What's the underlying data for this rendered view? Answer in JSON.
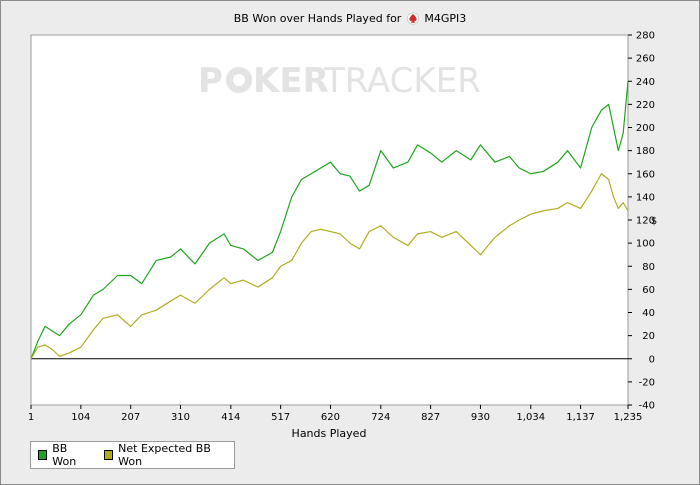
{
  "title": {
    "text_before": "BB Won over Hands Played for",
    "player": "M4GPI3",
    "suit_icon": "red-spade-icon"
  },
  "watermark": {
    "part1": "P",
    "part2": "KER",
    "part3": "TRACKER"
  },
  "colors": {
    "bb_won": "#1ea51e",
    "net_expected": "#b0ad22",
    "plot_bg": "#ffffff",
    "watermark": "#e3e3e3",
    "zero_line": "#000000"
  },
  "chart_data": {
    "type": "line",
    "title": "BB Won over Hands Played for M4GPI3",
    "xlabel": "Hands Played",
    "ylabel": "",
    "xlim": [
      1,
      1235
    ],
    "ylim": [
      -40,
      280
    ],
    "x_ticks": [
      1,
      104,
      207,
      310,
      414,
      517,
      620,
      724,
      827,
      930,
      1034,
      1137,
      1235
    ],
    "x_tick_labels": [
      "1",
      "104",
      "207",
      "310",
      "414",
      "517",
      "620",
      "724",
      "827",
      "930",
      "1,034",
      "1,137",
      "1,235"
    ],
    "y_ticks": [
      -40,
      -20,
      0,
      20,
      40,
      60,
      80,
      100,
      120,
      140,
      160,
      180,
      200,
      220,
      240,
      260,
      280
    ],
    "y_tick_labels": [
      "-40",
      "-20",
      "0",
      "20",
      "40",
      "60",
      "80",
      "100",
      "120",
      "140",
      "160",
      "180",
      "200",
      "220",
      "240",
      "260",
      "280"
    ],
    "y_axis_position": "right",
    "y_unit_symbol": "$",
    "grid": false,
    "legend_position": "bottom-left",
    "x": [
      1,
      15,
      30,
      45,
      60,
      80,
      104,
      130,
      150,
      180,
      207,
      230,
      260,
      290,
      310,
      340,
      370,
      400,
      414,
      440,
      470,
      500,
      517,
      540,
      560,
      580,
      600,
      620,
      640,
      660,
      680,
      700,
      724,
      750,
      780,
      800,
      827,
      850,
      880,
      910,
      930,
      960,
      990,
      1010,
      1034,
      1060,
      1090,
      1110,
      1137,
      1160,
      1180,
      1195,
      1205,
      1215,
      1225,
      1235
    ],
    "series": [
      {
        "name": "BB Won",
        "values": [
          0,
          15,
          28,
          24,
          20,
          30,
          38,
          55,
          60,
          72,
          72,
          65,
          85,
          88,
          95,
          82,
          100,
          108,
          98,
          95,
          85,
          92,
          110,
          140,
          155,
          160,
          165,
          170,
          160,
          158,
          145,
          150,
          180,
          165,
          170,
          185,
          178,
          170,
          180,
          172,
          185,
          170,
          175,
          165,
          160,
          162,
          170,
          180,
          165,
          200,
          215,
          220,
          200,
          180,
          195,
          240
        ]
      },
      {
        "name": "Net Expected BB Won",
        "values": [
          0,
          10,
          12,
          8,
          2,
          5,
          10,
          25,
          35,
          38,
          28,
          38,
          42,
          50,
          55,
          48,
          60,
          70,
          65,
          68,
          62,
          70,
          80,
          85,
          100,
          110,
          112,
          110,
          108,
          100,
          95,
          110,
          115,
          105,
          98,
          108,
          110,
          105,
          110,
          98,
          90,
          105,
          115,
          120,
          125,
          128,
          130,
          135,
          130,
          145,
          160,
          155,
          140,
          130,
          135,
          128
        ]
      }
    ]
  },
  "legend": {
    "items": [
      {
        "label": "BB Won",
        "color": "#1ea51e"
      },
      {
        "label": "Net Expected BB Won",
        "color": "#b0ad22"
      }
    ]
  }
}
